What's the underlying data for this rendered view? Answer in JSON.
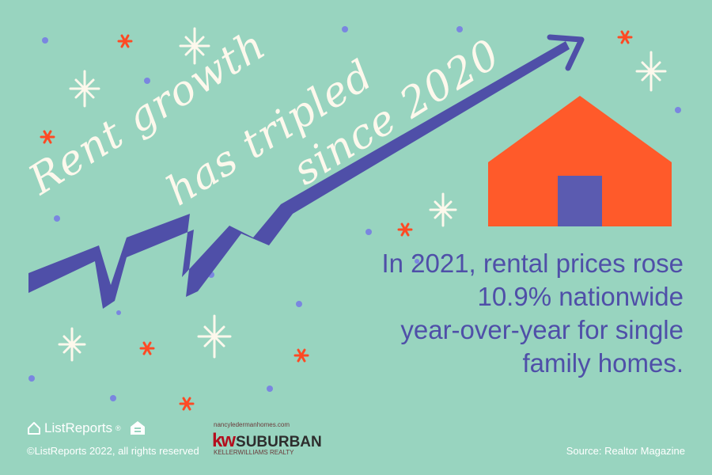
{
  "headline": {
    "line1": "Rent growth",
    "line2": "has tripled",
    "line3": "since 2020"
  },
  "stat": {
    "line1": "In 2021, rental prices rose",
    "line2": "10.9% nationwide",
    "line3": "year-over-year for single",
    "line4": "family homes."
  },
  "footer": {
    "brand": "ListReports",
    "brand_mark": "®",
    "copyright": "©ListReports 2022, all rights reserved",
    "source": "Source: Realtor Magazine"
  },
  "sponsor": {
    "url": "nancyledermanhomes.com",
    "mark": "kw",
    "name": "SUBURBAN",
    "subtitle": "KELLERWILLIAMS REALTY"
  },
  "colors": {
    "background": "#98d4bf",
    "arrow": "#4f4fa8",
    "house": "#ff5a2a",
    "door": "#5b5bb0",
    "cream": "#fdf8ec",
    "spark_red": "#ff4a24",
    "dot_blue": "#7a86e0"
  },
  "icons": {
    "arrow": "zigzag-up-arrow",
    "house": "house-icon",
    "logo": "listreports-house-icon",
    "equal_housing": "equal-housing-icon"
  }
}
